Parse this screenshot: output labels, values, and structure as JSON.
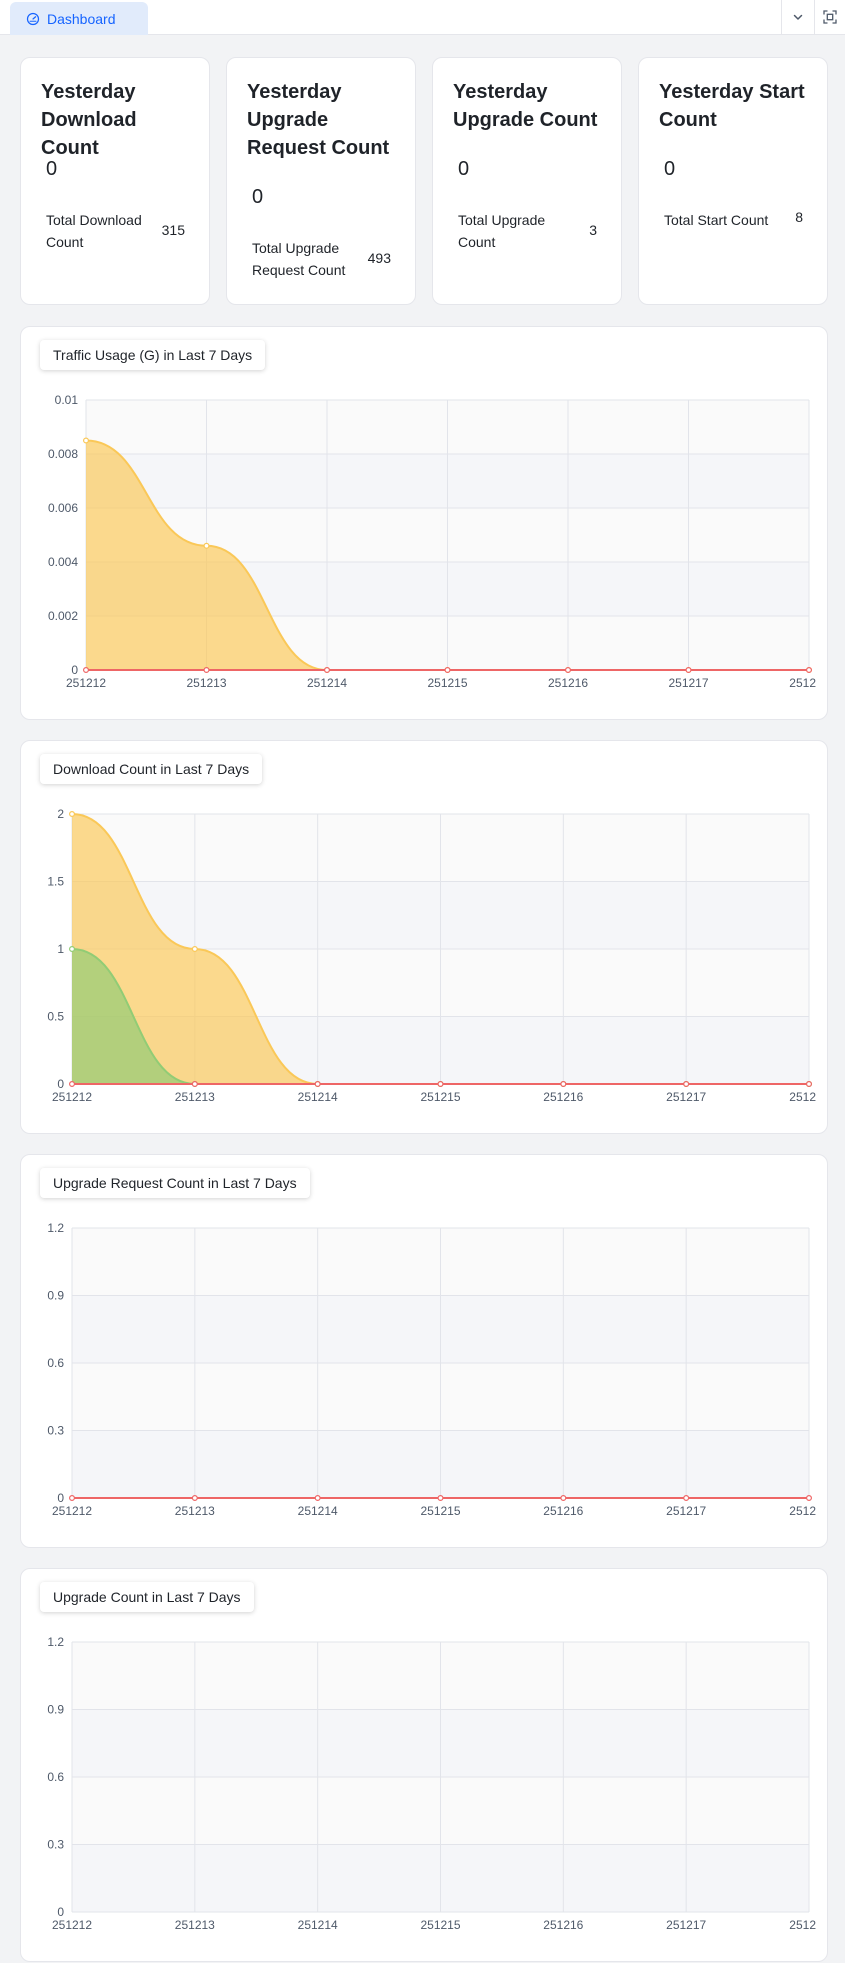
{
  "tabs": [
    {
      "label": "Dashboard",
      "active": true
    }
  ],
  "toolbar": {
    "dropdown_icon": "chevron-down-icon",
    "fullscreen_icon": "fullscreen-icon"
  },
  "stats": [
    {
      "title": "Yesterday Download Count",
      "value": "0",
      "total_label": "Total Download Count",
      "total_value": "315"
    },
    {
      "title": "Yesterday Upgrade Request Count",
      "value": "0",
      "total_label": "Total Upgrade Request Count",
      "total_value": "493"
    },
    {
      "title": "Yesterday Upgrade Count",
      "value": "0",
      "total_label": "Total Upgrade Count",
      "total_value": "3"
    },
    {
      "title": "Yesterday Start Count",
      "value": "0",
      "total_label": "Total Start Count",
      "total_value": "8"
    }
  ],
  "colors": {
    "accent": "#1664ff",
    "yellow": "#fac858",
    "green": "#91cc75",
    "orange": "#ee6666"
  },
  "chart_data": [
    {
      "type": "area",
      "title": "Traffic Usage (G) in Last 7 Days",
      "x": [
        "251212",
        "251213",
        "251214",
        "251215",
        "251216",
        "251217",
        "2512"
      ],
      "y_ticks": [
        "0",
        "0.002",
        "0.004",
        "0.006",
        "0.008",
        "0.01"
      ],
      "ylim": [
        0,
        0.01
      ],
      "grid": true,
      "series": [
        {
          "color": "#fac858",
          "values": [
            0.0085,
            0.0046,
            0,
            0,
            0,
            0,
            0
          ]
        },
        {
          "color": "#ee6666",
          "values": [
            0,
            0,
            0,
            0,
            0,
            0,
            0
          ]
        }
      ]
    },
    {
      "type": "area",
      "title": "Download Count in Last 7 Days",
      "x": [
        "251212",
        "251213",
        "251214",
        "251215",
        "251216",
        "251217",
        "2512"
      ],
      "y_ticks": [
        "0",
        "0.5",
        "1",
        "1.5",
        "2"
      ],
      "ylim": [
        0,
        2
      ],
      "grid": true,
      "series": [
        {
          "color": "#fac858",
          "values": [
            2,
            1,
            0,
            0,
            0,
            0,
            0
          ]
        },
        {
          "color": "#91cc75",
          "values": [
            1,
            0,
            0,
            0,
            0,
            0,
            0
          ]
        },
        {
          "color": "#ee6666",
          "values": [
            0,
            0,
            0,
            0,
            0,
            0,
            0
          ]
        }
      ]
    },
    {
      "type": "area",
      "title": "Upgrade Request Count in Last 7 Days",
      "x": [
        "251212",
        "251213",
        "251214",
        "251215",
        "251216",
        "251217",
        "2512"
      ],
      "y_ticks": [
        "0",
        "0.3",
        "0.6",
        "0.9",
        "1.2"
      ],
      "ylim": [
        0,
        1.2
      ],
      "grid": true,
      "series": [
        {
          "color": "#ee6666",
          "values": [
            0,
            0,
            0,
            0,
            0,
            0,
            0
          ]
        }
      ]
    },
    {
      "type": "area",
      "title": "Upgrade Count in Last 7 Days",
      "x": [
        "251212",
        "251213",
        "251214",
        "251215",
        "251216",
        "251217",
        "2512"
      ],
      "y_ticks": [
        "0",
        "0.3",
        "0.6",
        "0.9",
        "1.2"
      ],
      "ylim": [
        0,
        1.2
      ],
      "grid": true,
      "series": []
    }
  ]
}
